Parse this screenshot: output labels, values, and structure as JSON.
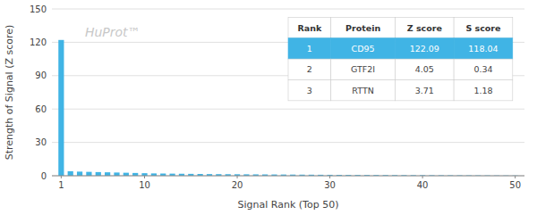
{
  "chart_data": {
    "type": "bar",
    "x": [
      1,
      2,
      3,
      4,
      5,
      6,
      7,
      8,
      9,
      10,
      11,
      12,
      13,
      14,
      15,
      16,
      17,
      18,
      19,
      20,
      21,
      22,
      23,
      24,
      25,
      26,
      27,
      28,
      29,
      30,
      31,
      32,
      33,
      34,
      35,
      36,
      37,
      38,
      39,
      40,
      41,
      42,
      43,
      44,
      45,
      46,
      47,
      48,
      49,
      50
    ],
    "values": [
      122.09,
      4.05,
      3.71,
      3.5,
      3.3,
      3.1,
      2.9,
      2.7,
      2.5,
      2.3,
      2.1,
      2.0,
      1.9,
      1.8,
      1.7,
      1.6,
      1.5,
      1.45,
      1.4,
      1.35,
      1.3,
      1.25,
      1.2,
      1.15,
      1.1,
      1.05,
      1.0,
      0.95,
      0.9,
      0.85,
      0.8,
      0.75,
      0.72,
      0.69,
      0.66,
      0.63,
      0.6,
      0.57,
      0.54,
      0.51,
      0.48,
      0.45,
      0.42,
      0.39,
      0.36,
      0.33,
      0.3,
      0.27,
      0.24,
      0.21
    ],
    "color": "#40b4e5",
    "x_label": "Signal Rank (Top 50)",
    "y_label": "Strength of Signal (Z score)",
    "xlim": [
      0,
      51
    ],
    "xticks": [
      1,
      10,
      20,
      30,
      40,
      50
    ],
    "ylim": [
      0,
      150
    ],
    "yticks": [
      0,
      30,
      60,
      90,
      120,
      150
    ],
    "grid": true,
    "annotations": [
      {
        "text": "HuProt™"
      }
    ],
    "table": {
      "columns": [
        "Rank",
        "Protein",
        "Z score",
        "S score"
      ],
      "rows": [
        [
          "1",
          "CD95",
          "122.09",
          "118.04"
        ],
        [
          "2",
          "GTF2I",
          "4.05",
          "0.34"
        ],
        [
          "3",
          "RTTN",
          "3.71",
          "1.18"
        ]
      ],
      "color": "#40b4e5"
    }
  }
}
